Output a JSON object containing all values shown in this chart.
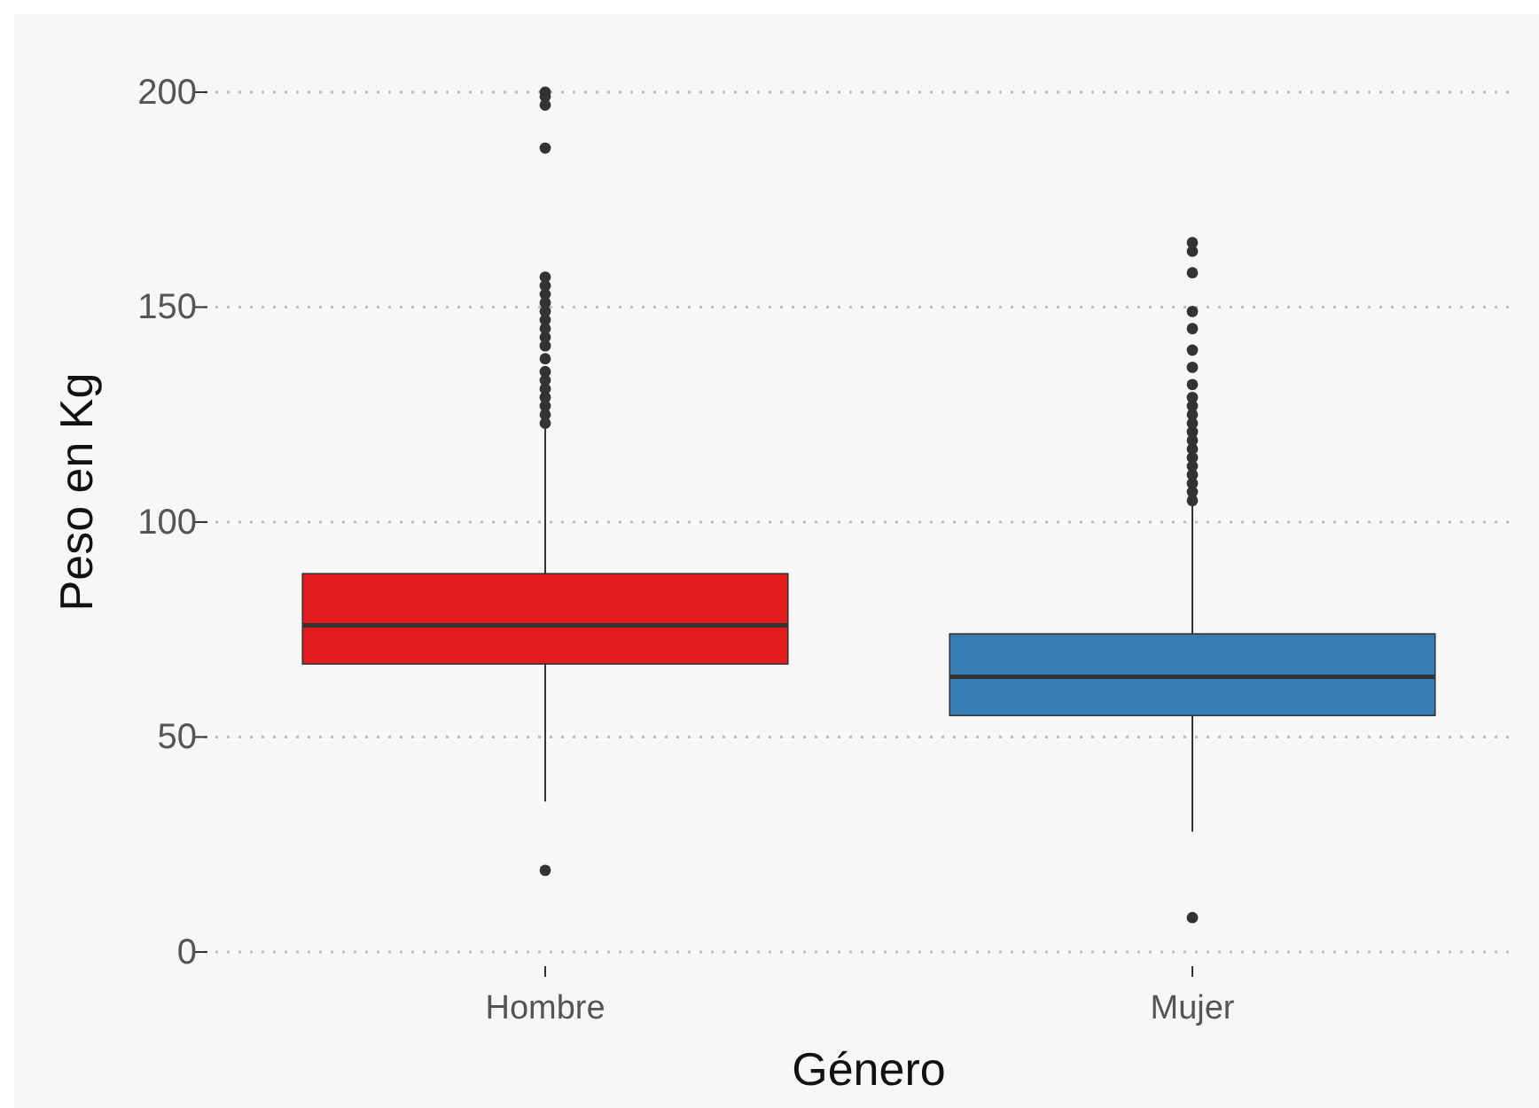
{
  "chart_data": {
    "type": "box",
    "xlabel": "Género",
    "ylabel": "Peso en Kg",
    "categories": [
      "Hombre",
      "Mujer"
    ],
    "ylim": [
      0,
      200
    ],
    "yticks": [
      0,
      50,
      100,
      150,
      200
    ],
    "grid": "y",
    "series": [
      {
        "colors": [
          "#e41a1c",
          "#377eb8"
        ],
        "boxes": [
          {
            "low": 35,
            "q1": 67,
            "median": 76,
            "q3": 88,
            "high": 122,
            "outliers": [
              19,
              123,
              125,
              127,
              129,
              131,
              133,
              135,
              138,
              141,
              143,
              145,
              147,
              149,
              151,
              153,
              155,
              157,
              187,
              197,
              199,
              200
            ]
          },
          {
            "low": 28,
            "q1": 55,
            "median": 64,
            "q3": 74,
            "high": 104,
            "outliers": [
              8,
              105,
              107,
              109,
              111,
              113,
              115,
              117,
              119,
              121,
              123,
              125,
              127,
              129,
              132,
              136,
              140,
              145,
              149,
              158,
              163,
              165
            ]
          }
        ]
      }
    ]
  }
}
